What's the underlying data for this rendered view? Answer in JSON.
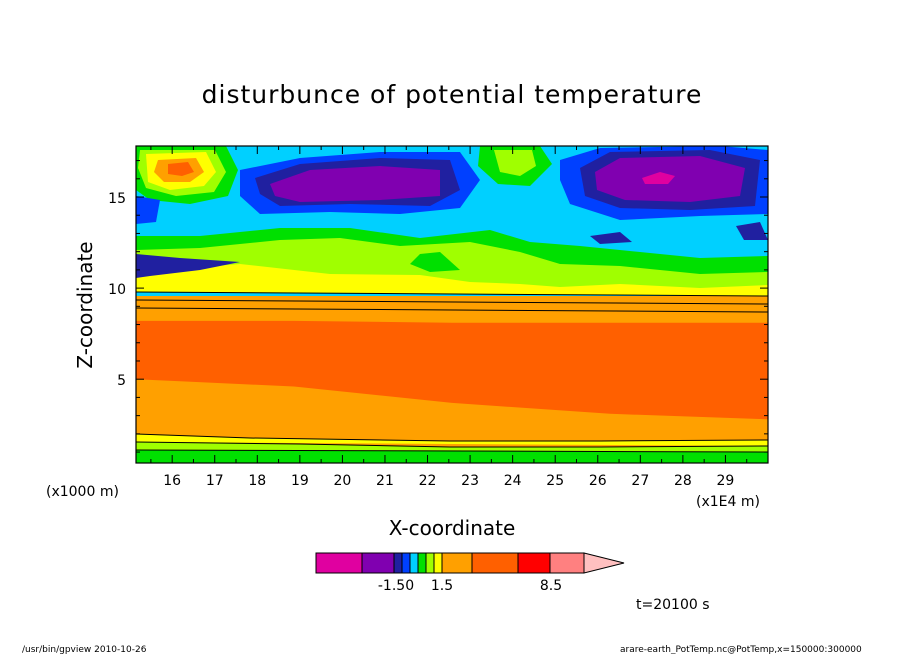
{
  "chart_data": {
    "type": "heatmap",
    "title": "disturbunce of potential temperature",
    "xlabel": "X-coordinate",
    "ylabel": "Z-coordinate",
    "x_unit_left": "(x1000 m)",
    "x_unit_right": "(x1E4 m)",
    "x_ticks": [
      "16",
      "17",
      "18",
      "19",
      "20",
      "21",
      "22",
      "23",
      "24",
      "25",
      "26",
      "27",
      "28",
      "29"
    ],
    "y_ticks": [
      "5",
      "10",
      "15"
    ],
    "xlim": [
      15.15,
      30.0
    ],
    "ylim": [
      0.4,
      17.8
    ],
    "y_tick_values": [
      5,
      10,
      15
    ],
    "colorbar": {
      "colors": [
        "#e000a0",
        "#8000b0",
        "#2020a0",
        "#0040ff",
        "#00d0ff",
        "#00e000",
        "#a0ff00",
        "#ffff00",
        "#ffa000",
        "#ff6000",
        "#ff0000",
        "#ff8080",
        "#ffc0c0"
      ],
      "labels": [
        "-1.50",
        "1.5",
        "8.5"
      ]
    },
    "layers": [
      {
        "name": "base",
        "color": "#ffa000"
      },
      {
        "name": "core",
        "color": "#ff6000",
        "top": [
          8.2,
          8.2,
          8.1,
          8.1,
          8.1
        ],
        "bottom": [
          5.0,
          4.6,
          3.7,
          3.1,
          2.8
        ]
      },
      {
        "name": "upper-band",
        "color": "#00d0ff"
      },
      {
        "name": "lower-green",
        "color": "#00e000"
      }
    ],
    "time_label": "t=20100 s"
  },
  "footer": {
    "left": "/usr/bin/gpview   2010-10-26",
    "right": "arare-earth_PotTemp.nc@PotTemp,x=150000:300000"
  },
  "colors": {
    "frame": "#000000",
    "background": "#ffffff"
  }
}
